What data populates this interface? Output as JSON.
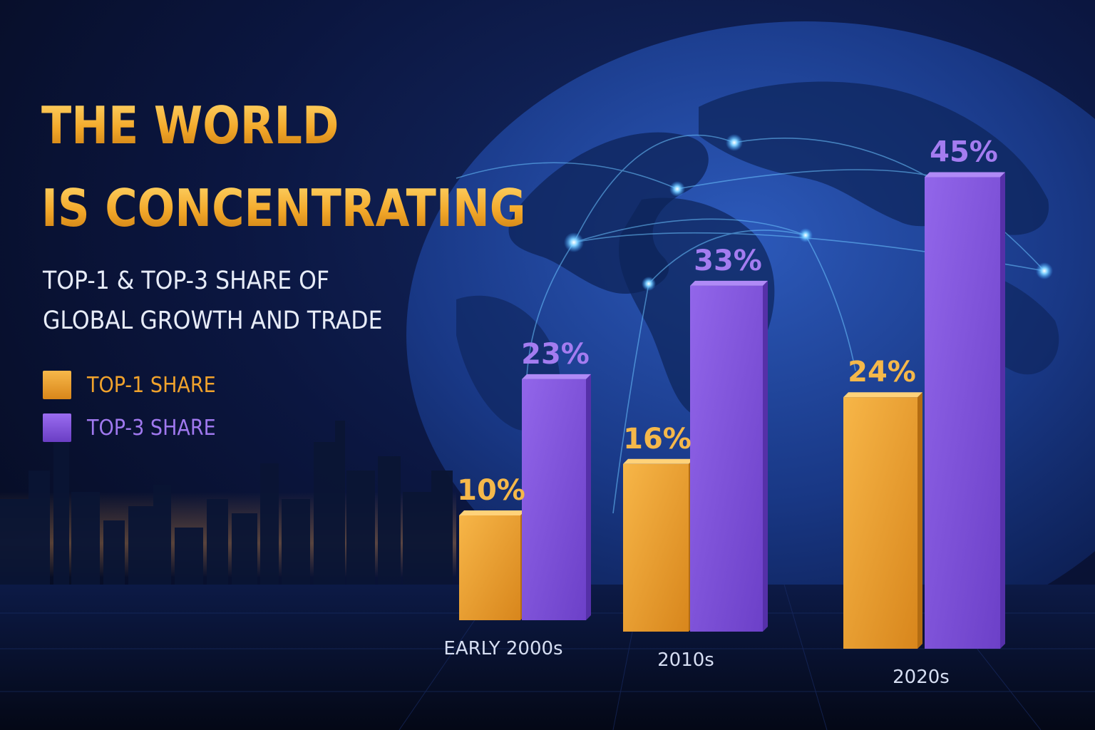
{
  "title": [
    "THE WORLD",
    "IS CONCENTRATING"
  ],
  "subtitle": [
    "TOP-1 & TOP-3 SHARE OF",
    "GLOBAL GROWTH AND TRADE"
  ],
  "legend": {
    "placement": "left",
    "items": [
      {
        "label": "TOP-1 SHARE",
        "color": "#f0a22c"
      },
      {
        "label": "TOP-3 SHARE",
        "color": "#8a5ae0"
      }
    ]
  },
  "colors": {
    "background": "#070d24",
    "top1": "#f0a22c",
    "top3": "#8a5ae0"
  },
  "chart_data": {
    "type": "bar",
    "categories": [
      "EARLY 2000s",
      "2010s",
      "2020s"
    ],
    "series": [
      {
        "name": "TOP-1 SHARE",
        "values": [
          10,
          16,
          24
        ],
        "labels": [
          "10%",
          "16%",
          "24%"
        ]
      },
      {
        "name": "TOP-3 SHARE",
        "values": [
          23,
          33,
          45
        ],
        "labels": [
          "23%",
          "33%",
          "45%"
        ]
      }
    ],
    "unit": "%",
    "grid": false,
    "legend_placement": "left"
  }
}
